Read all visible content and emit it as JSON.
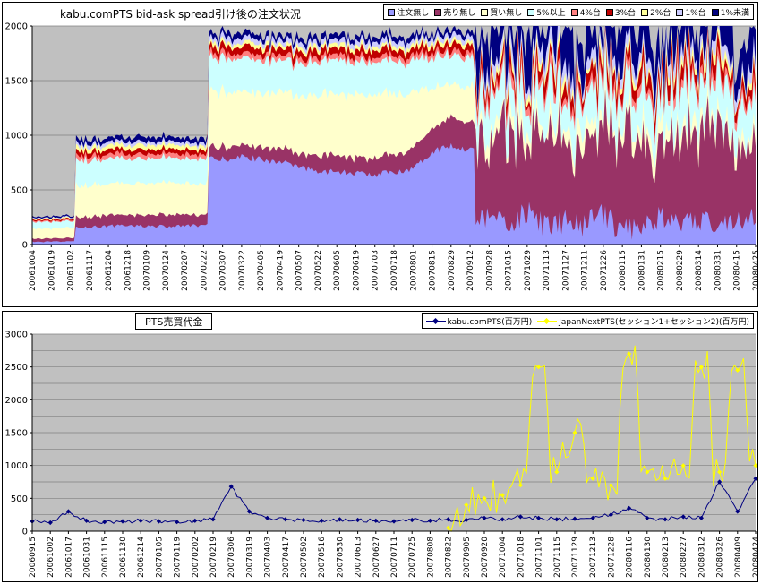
{
  "chart_data": [
    {
      "type": "area",
      "stacked": true,
      "title": "kabu.comPTS bid-ask spread引け後の注文状況",
      "xlabel": "",
      "ylabel": "",
      "ylim": [
        0,
        2000
      ],
      "y_tick_step": 500,
      "grid_step": 500,
      "plot_bg": "#C0C0C0",
      "legend_position": "top-right",
      "x_labels": [
        "20061004",
        "20061019",
        "20061102",
        "20061117",
        "20061204",
        "20061218",
        "20070109",
        "20070124",
        "20070207",
        "20070222",
        "20070307",
        "20070322",
        "20070405",
        "20070419",
        "20070507",
        "20070522",
        "20070605",
        "20070619",
        "20070703",
        "20070718",
        "20070801",
        "20070815",
        "20070829",
        "20070912",
        "20070928",
        "20071015",
        "20071029",
        "20071113",
        "20071127",
        "20071211",
        "20071226",
        "20080115",
        "20080131",
        "20080215",
        "20080229",
        "20080314",
        "20080331",
        "20080415",
        "20080425"
      ],
      "segments": [
        [
          0,
          2
        ],
        [
          3,
          9
        ],
        [
          10,
          23
        ],
        [
          24,
          38
        ]
      ],
      "series": [
        {
          "name": "注文無し",
          "color": "#9999FF",
          "noise": [
            5,
            15,
            30,
            120
          ],
          "values": [
            25,
            25,
            28,
            160,
            170,
            175,
            170,
            165,
            170,
            175,
            780,
            800,
            780,
            760,
            700,
            680,
            660,
            650,
            640,
            660,
            700,
            850,
            900,
            870,
            250,
            180,
            300,
            150,
            220,
            160,
            280,
            120,
            200,
            260,
            150,
            230,
            180,
            260,
            200
          ]
        },
        {
          "name": "売り無し",
          "color": "#993366",
          "noise": [
            5,
            10,
            25,
            260
          ],
          "values": [
            28,
            30,
            30,
            95,
            100,
            95,
            100,
            105,
            100,
            95,
            110,
            100,
            110,
            120,
            130,
            140,
            150,
            140,
            150,
            160,
            180,
            220,
            260,
            250,
            700,
            850,
            600,
            900,
            750,
            650,
            800,
            900,
            700,
            600,
            850,
            750,
            900,
            650,
            700
          ]
        },
        {
          "name": "買い無し",
          "color": "#FFFFCC",
          "noise": [
            8,
            18,
            35,
            80
          ],
          "values": [
            95,
            90,
            95,
            290,
            285,
            290,
            295,
            290,
            285,
            290,
            500,
            490,
            500,
            510,
            540,
            550,
            560,
            570,
            580,
            560,
            520,
            380,
            300,
            330,
            120,
            80,
            150,
            60,
            100,
            140,
            90,
            60,
            130,
            150,
            80,
            120,
            60,
            100,
            90
          ]
        },
        {
          "name": "5%以上",
          "color": "#CCFFFF",
          "noise": [
            6,
            15,
            30,
            130
          ],
          "values": [
            60,
            62,
            60,
            230,
            230,
            225,
            230,
            235,
            230,
            228,
            300,
            310,
            300,
            295,
            300,
            310,
            300,
            305,
            300,
            295,
            290,
            280,
            270,
            280,
            280,
            350,
            250,
            400,
            300,
            250,
            350,
            280,
            320,
            250,
            380,
            300,
            350,
            280,
            300
          ]
        },
        {
          "name": "4%台",
          "color": "#FF8080",
          "noise": [
            3,
            6,
            10,
            35
          ],
          "values": [
            10,
            10,
            10,
            40,
            40,
            42,
            40,
            38,
            40,
            40,
            45,
            45,
            48,
            45,
            42,
            45,
            48,
            45,
            42,
            45,
            48,
            45,
            42,
            45,
            60,
            80,
            50,
            90,
            70,
            50,
            80,
            60,
            70,
            50,
            90,
            60,
            80,
            50,
            70
          ]
        },
        {
          "name": "3%台",
          "color": "#C00000",
          "noise": [
            3,
            8,
            15,
            60
          ],
          "values": [
            10,
            10,
            11,
            42,
            40,
            42,
            44,
            40,
            42,
            40,
            60,
            62,
            60,
            58,
            62,
            60,
            58,
            60,
            62,
            60,
            58,
            60,
            62,
            60,
            90,
            120,
            80,
            130,
            100,
            80,
            120,
            90,
            110,
            80,
            130,
            90,
            120,
            80,
            100
          ]
        },
        {
          "name": "2%台",
          "color": "#FFFF99",
          "noise": [
            3,
            6,
            10,
            40
          ],
          "values": [
            10,
            10,
            10,
            40,
            38,
            40,
            42,
            40,
            38,
            40,
            35,
            35,
            38,
            35,
            32,
            35,
            38,
            35,
            32,
            35,
            38,
            35,
            32,
            35,
            50,
            70,
            40,
            80,
            60,
            40,
            70,
            50,
            60,
            40,
            80,
            50,
            70,
            40,
            60
          ]
        },
        {
          "name": "1%台",
          "color": "#CCCCFF",
          "noise": [
            2,
            6,
            10,
            60
          ],
          "values": [
            6,
            6,
            6,
            30,
            30,
            32,
            30,
            28,
            30,
            30,
            45,
            45,
            42,
            45,
            48,
            45,
            42,
            45,
            48,
            45,
            42,
            45,
            48,
            45,
            90,
            120,
            70,
            140,
            100,
            70,
            120,
            90,
            110,
            70,
            140,
            90,
            120,
            70,
            100
          ]
        },
        {
          "name": "1%未満",
          "color": "#000080",
          "noise": [
            3,
            8,
            12,
            200
          ],
          "values": [
            12,
            12,
            12,
            42,
            40,
            42,
            44,
            42,
            40,
            42,
            45,
            48,
            45,
            42,
            45,
            48,
            45,
            42,
            45,
            48,
            45,
            42,
            45,
            48,
            350,
            250,
            450,
            220,
            400,
            300,
            250,
            500,
            350,
            250,
            450,
            300,
            400,
            250,
            350
          ]
        }
      ]
    },
    {
      "type": "line",
      "title": "PTS売買代金",
      "xlabel": "",
      "ylabel": "",
      "ylim": [
        0,
        3000
      ],
      "y_tick_step": 500,
      "grid_step": 250,
      "plot_bg": "#C0C0C0",
      "legend_position": "top-right",
      "x_labels": [
        "20060915",
        "20061002",
        "20061017",
        "20061031",
        "20061115",
        "20061130",
        "20061214",
        "20070105",
        "20070119",
        "20070202",
        "20070219",
        "20070306",
        "20070319",
        "20070403",
        "20070417",
        "20070502",
        "20070516",
        "20070530",
        "20070613",
        "20070627",
        "20070711",
        "20070725",
        "20070808",
        "20070822",
        "20070905",
        "20070920",
        "20071004",
        "20071018",
        "20071101",
        "20071115",
        "20071129",
        "20071213",
        "20071228",
        "20080116",
        "20080130",
        "20080213",
        "20080227",
        "20080312",
        "20080326",
        "20080409",
        "20080424"
      ],
      "series": [
        {
          "name": "kabu.comPTS(百万円)",
          "color": "#000080",
          "marker": "diamond",
          "noise": 30,
          "start_index": 0,
          "values": [
            150,
            130,
            300,
            160,
            140,
            150,
            160,
            150,
            140,
            160,
            180,
            680,
            300,
            200,
            180,
            170,
            160,
            180,
            170,
            160,
            150,
            170,
            160,
            180,
            170,
            200,
            180,
            220,
            200,
            180,
            190,
            200,
            250,
            350,
            200,
            180,
            220,
            200,
            750,
            300,
            800
          ]
        },
        {
          "name": "JapanNextPTS(セッション1+セッション2)(百万円)",
          "color": "#FFFF00",
          "marker": "diamond",
          "noise": 260,
          "start_index": 23,
          "values": [
            0,
            0,
            0,
            0,
            0,
            0,
            0,
            0,
            0,
            0,
            0,
            0,
            0,
            0,
            0,
            0,
            0,
            0,
            0,
            0,
            0,
            0,
            0,
            50,
            400,
            500,
            550,
            700,
            2500,
            900,
            1500,
            800,
            700,
            2700,
            900,
            800,
            1000,
            2500,
            900,
            2450,
            1000
          ]
        }
      ]
    }
  ]
}
